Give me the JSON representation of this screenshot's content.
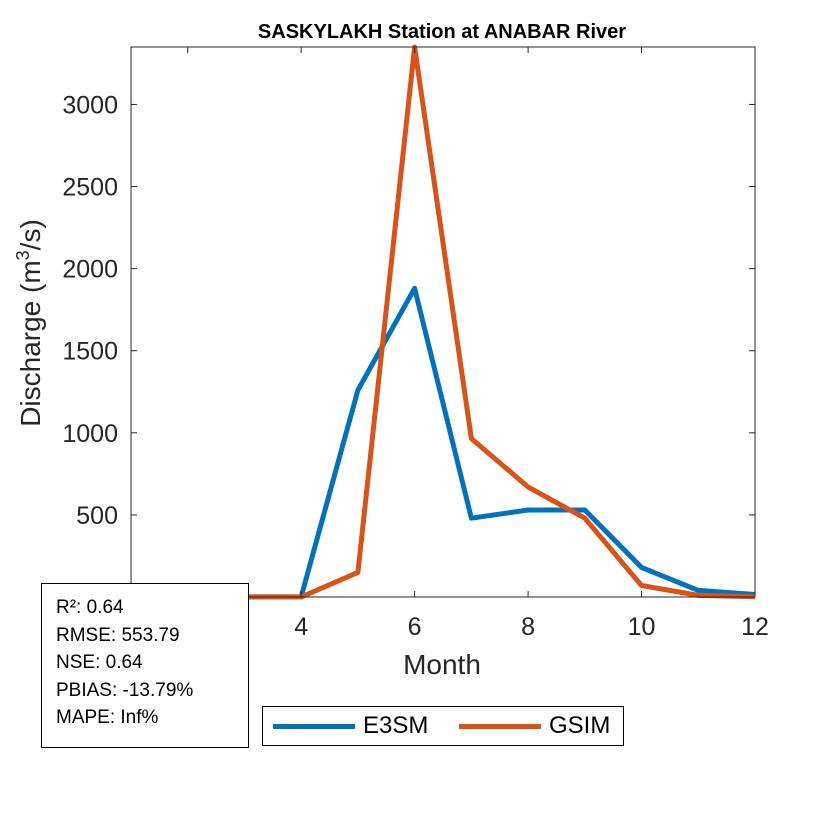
{
  "chart_data": {
    "type": "line",
    "title": "SASKYLAKH  Station at  ANABAR  River",
    "xlabel": "Month",
    "ylabel": "Discharge (m",
    "ylabel_superscript": "3",
    "ylabel_suffix": "/s)",
    "x": [
      1,
      2,
      3,
      4,
      5,
      6,
      7,
      8,
      9,
      10,
      11,
      12
    ],
    "xlim": [
      1,
      12
    ],
    "ylim": [
      0,
      3350
    ],
    "xticks": [
      2,
      4,
      6,
      8,
      10,
      12
    ],
    "yticks": [
      500,
      1000,
      1500,
      2000,
      2500,
      3000
    ],
    "grid": false,
    "legend_placement": "bottom",
    "series": [
      {
        "name": "E3SM",
        "color": "#0072BD",
        "values": [
          2,
          1,
          0,
          2,
          1260,
          1880,
          480,
          530,
          530,
          180,
          40,
          15
        ]
      },
      {
        "name": "GSIM",
        "color": "#D95319",
        "values": [
          5,
          3,
          2,
          0,
          150,
          3350,
          965,
          670,
          480,
          70,
          10,
          2
        ]
      }
    ]
  },
  "stats": {
    "r2": "R²: 0.64",
    "rmse": "RMSE: 553.79",
    "nse": "NSE: 0.64",
    "pbias": "PBIAS: -13.79%",
    "mape": "MAPE: Inf%"
  }
}
